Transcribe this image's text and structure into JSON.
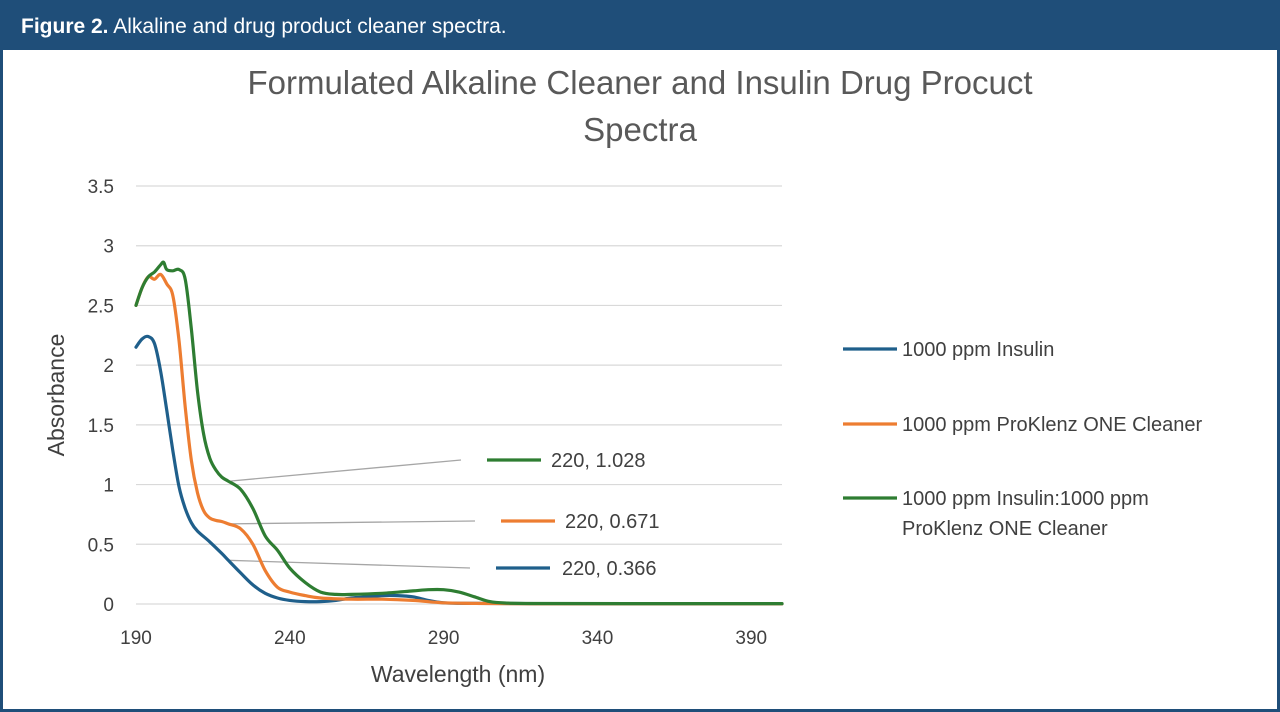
{
  "figure_caption": {
    "label": "Figure 2.",
    "text": "Alkaline and drug product cleaner spectra."
  },
  "chart_data": {
    "type": "line",
    "title_lines": [
      "Formulated Alkaline Cleaner and Insulin Drug Procuct",
      "Spectra"
    ],
    "xlabel": "Wavelength (nm)",
    "ylabel": "Absorbance",
    "xlim": [
      190,
      400
    ],
    "ylim": [
      0,
      3.5
    ],
    "x_ticks": [
      190,
      240,
      290,
      340,
      390
    ],
    "y_ticks": [
      0,
      0.5,
      1,
      1.5,
      2,
      2.5,
      3,
      3.5
    ],
    "y_tick_labels": [
      "0",
      "0.5",
      "1",
      "1.5",
      "2",
      "2.5",
      "3",
      "3.5"
    ],
    "grid": true,
    "legend_position": "right",
    "series": [
      {
        "name": "1000 ppm Insulin",
        "color": "#1f5f8b",
        "x": [
          190,
          192,
          194,
          196,
          198,
          200,
          202,
          204,
          206,
          208,
          210,
          214,
          218,
          220,
          224,
          228,
          232,
          236,
          240,
          245,
          250,
          255,
          260,
          265,
          270,
          275,
          280,
          285,
          290,
          300,
          320,
          350,
          400
        ],
        "y": [
          2.15,
          2.22,
          2.24,
          2.18,
          1.95,
          1.62,
          1.28,
          0.98,
          0.8,
          0.68,
          0.61,
          0.52,
          0.42,
          0.366,
          0.26,
          0.16,
          0.09,
          0.05,
          0.03,
          0.02,
          0.02,
          0.03,
          0.05,
          0.06,
          0.07,
          0.07,
          0.06,
          0.03,
          0.01,
          0.005,
          0.003,
          0.002,
          0.002
        ],
        "point_label": {
          "x": 220,
          "y": 0.366,
          "text": "220, 0.366"
        }
      },
      {
        "name": "1000 ppm ProKlenz ONE Cleaner",
        "color": "#ed7d31",
        "x": [
          190,
          192,
          194,
          196,
          198,
          200,
          202,
          204,
          206,
          208,
          210,
          212,
          214,
          216,
          218,
          220,
          224,
          228,
          232,
          236,
          240,
          245,
          250,
          260,
          270,
          280,
          290,
          300,
          320,
          350,
          400
        ],
        "y": [
          2.5,
          2.65,
          2.74,
          2.72,
          2.76,
          2.68,
          2.58,
          2.2,
          1.65,
          1.2,
          0.93,
          0.78,
          0.72,
          0.7,
          0.69,
          0.671,
          0.63,
          0.5,
          0.28,
          0.14,
          0.1,
          0.07,
          0.05,
          0.04,
          0.04,
          0.03,
          0.01,
          0.005,
          0.002,
          0.002,
          0.002
        ],
        "point_label": {
          "x": 220,
          "y": 0.671,
          "text": "220, 0.671"
        }
      },
      {
        "name": "1000 ppm Insulin:1000 ppm ProKlenz ONE Cleaner",
        "color": "#2e7d32",
        "x": [
          190,
          192,
          194,
          196,
          198,
          199,
          200,
          202,
          204,
          206,
          208,
          210,
          212,
          214,
          216,
          218,
          220,
          224,
          228,
          232,
          236,
          240,
          245,
          250,
          255,
          260,
          270,
          280,
          285,
          290,
          295,
          300,
          305,
          310,
          320,
          350,
          400
        ],
        "y": [
          2.5,
          2.65,
          2.74,
          2.78,
          2.84,
          2.86,
          2.8,
          2.79,
          2.8,
          2.72,
          2.3,
          1.78,
          1.42,
          1.22,
          1.12,
          1.06,
          1.028,
          0.96,
          0.8,
          0.57,
          0.45,
          0.3,
          0.18,
          0.1,
          0.08,
          0.08,
          0.09,
          0.11,
          0.12,
          0.12,
          0.1,
          0.06,
          0.02,
          0.008,
          0.004,
          0.003,
          0.003
        ],
        "point_label": {
          "x": 220,
          "y": 1.028,
          "text": "220, 1.028"
        }
      }
    ]
  }
}
